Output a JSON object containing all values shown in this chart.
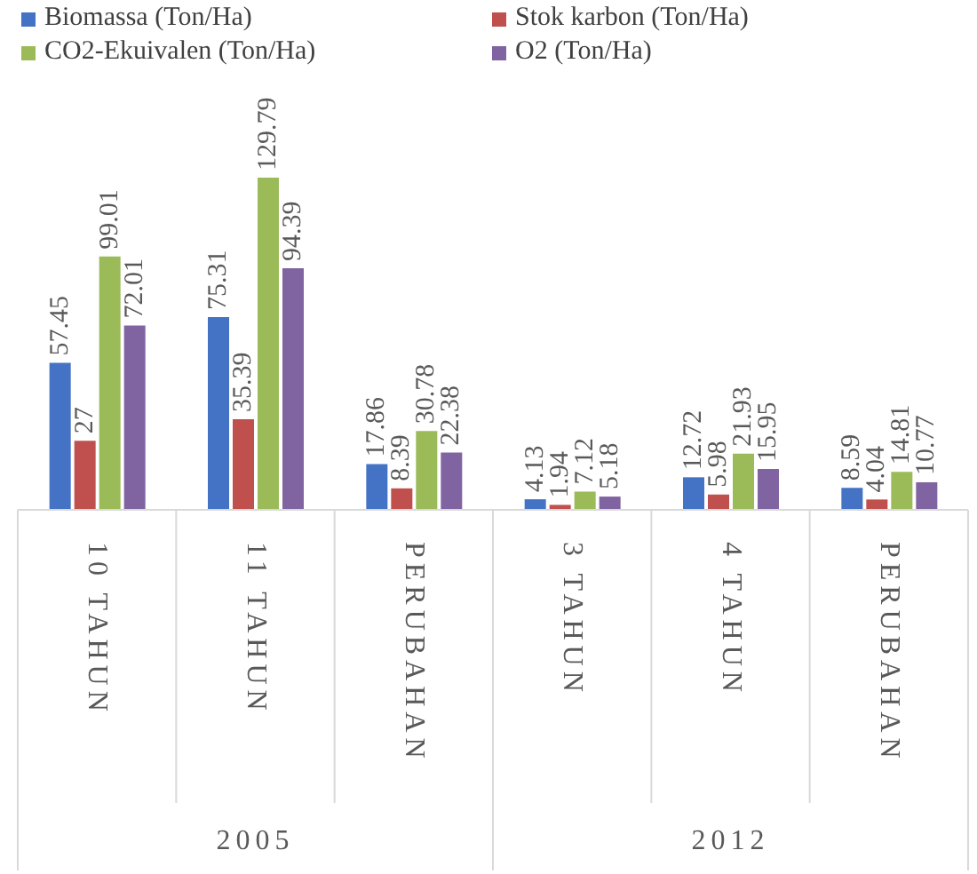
{
  "chart_data": {
    "type": "bar",
    "categories": [
      "10 TAHUN",
      "11 TAHUN",
      "PERUBAHAN",
      "3 TAHUN",
      "4 TAHUN",
      "PERUBAHAN"
    ],
    "series": [
      {
        "name": "Biomassa (Ton/Ha)",
        "color": "#4472c4",
        "values": [
          57.45,
          75.31,
          17.86,
          4.13,
          12.72,
          8.59
        ]
      },
      {
        "name": "Stok karbon (Ton/Ha)",
        "color": "#c0504d",
        "values": [
          27,
          35.39,
          8.39,
          1.94,
          5.98,
          4.04
        ]
      },
      {
        "name": "CO2-Ekuivalen (Ton/Ha)",
        "color": "#9bbb59",
        "values": [
          99.01,
          129.79,
          30.78,
          7.12,
          21.93,
          14.81
        ]
      },
      {
        "name": "O2 (Ton/Ha)",
        "color": "#8064a2",
        "values": [
          72.01,
          94.39,
          22.38,
          5.18,
          15.95,
          10.77
        ]
      }
    ],
    "annotations": [
      "2005",
      "2012"
    ],
    "data_labels": true,
    "legend": "top",
    "grid": false
  }
}
